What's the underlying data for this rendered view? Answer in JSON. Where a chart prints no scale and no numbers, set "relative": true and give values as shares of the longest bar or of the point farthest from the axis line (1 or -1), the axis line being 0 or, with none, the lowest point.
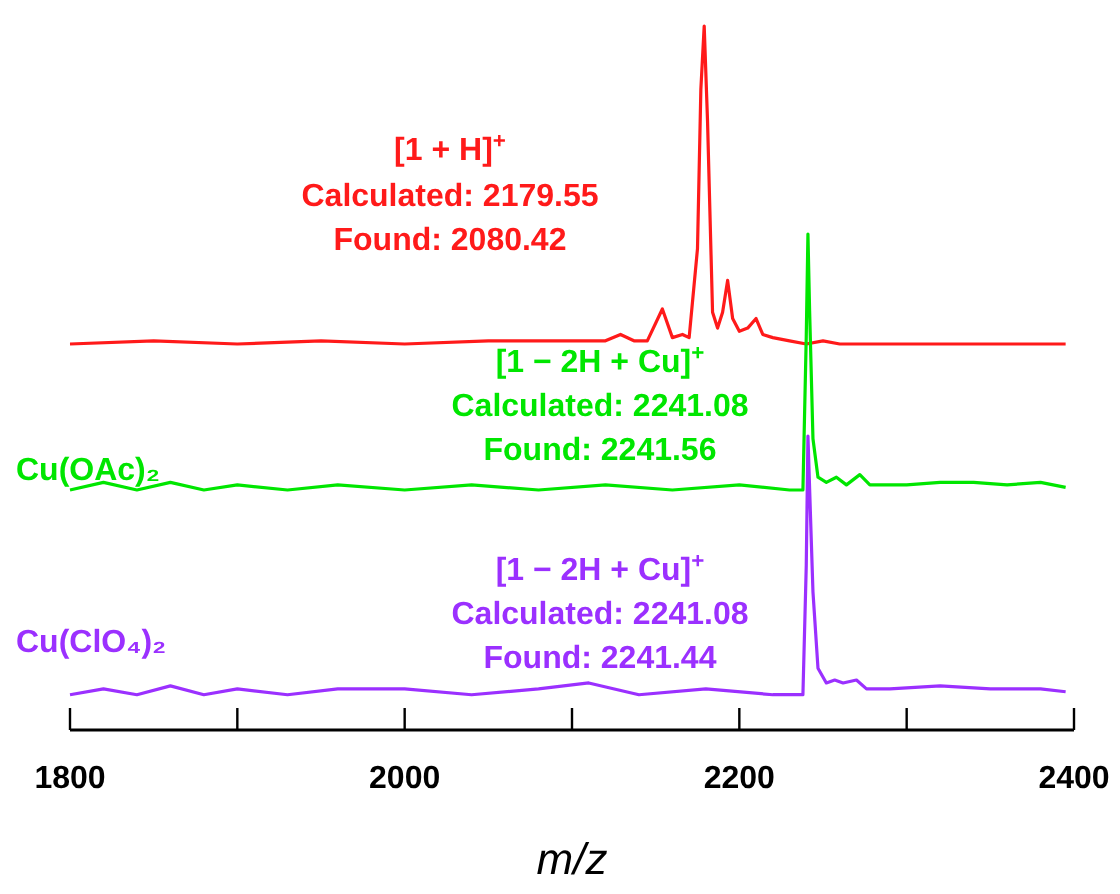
{
  "chart_data": [
    {
      "type": "line",
      "relative": true,
      "xlim": [
        1800,
        2400
      ],
      "tick_labels": false,
      "annotations": [
        "[1 + H]$^{+}$",
        "Calculated: 2179.55",
        "Found: 2080.42"
      ],
      "series": [
        {
          "color": "#ff1a1a",
          "x": [
            1800,
            1850,
            1900,
            1950,
            2000,
            2050,
            2100,
            2120,
            2129,
            2137,
            2145,
            2154,
            2160,
            2166,
            2170,
            2175,
            2177,
            2179,
            2181,
            2184,
            2187,
            2190,
            2193,
            2196,
            2200,
            2205,
            2210,
            2214,
            2220,
            2230,
            2240,
            2250,
            2260,
            2300,
            2350,
            2395
          ],
          "values": [
            0,
            0.01,
            0,
            0.01,
            0,
            0.01,
            0.01,
            0.01,
            0.03,
            0.01,
            0.01,
            0.11,
            0.02,
            0.03,
            0.02,
            0.3,
            0.8,
            1,
            0.7,
            0.1,
            0.05,
            0.1,
            0.2,
            0.08,
            0.04,
            0.05,
            0.08,
            0.03,
            0.02,
            0.01,
            0,
            0.01,
            0,
            0,
            0,
            0
          ]
        }
      ]
    },
    {
      "type": "line",
      "relative": true,
      "xlim": [
        1800,
        2400
      ],
      "tick_labels": false,
      "annotations": [
        "[1 − 2H + Cu]$^{+}$",
        "Calculated: 2241.08",
        "Found: 2241.56"
      ],
      "series": [
        {
          "name": "Cu(OAc)₂",
          "color": "#00e600",
          "x": [
            1800,
            1820,
            1840,
            1860,
            1880,
            1900,
            1930,
            1960,
            2000,
            2040,
            2080,
            2120,
            2160,
            2200,
            2230,
            2238,
            2240,
            2241,
            2242,
            2244,
            2247,
            2252,
            2258,
            2264,
            2272,
            2278,
            2300,
            2320,
            2340,
            2360,
            2380,
            2395
          ],
          "values": [
            0,
            0.03,
            0,
            0.03,
            0,
            0.02,
            0,
            0.02,
            0,
            0.02,
            0,
            0.02,
            0,
            0.02,
            0,
            0,
            0.6,
            1,
            0.7,
            0.2,
            0.05,
            0.03,
            0.05,
            0.02,
            0.06,
            0.02,
            0.02,
            0.03,
            0.03,
            0.02,
            0.03,
            0.01
          ]
        }
      ]
    },
    {
      "type": "line",
      "relative": true,
      "xlim": [
        1800,
        2400
      ],
      "xticks": [
        1800,
        {
          "value": 1900,
          "label": null
        },
        2000,
        {
          "value": 2100,
          "label": null
        },
        2200,
        {
          "value": 2300,
          "label": null
        },
        2400
      ],
      "tick_labels": "x",
      "xlabel": "m/z",
      "annotations": [
        "[1 − 2H + Cu]$^{+}$",
        "Calculated: 2241.08",
        "Found: 2241.44"
      ],
      "series": [
        {
          "name": "Cu(ClO₄)₂",
          "color": "#9b30ff",
          "x": [
            1800,
            1820,
            1840,
            1860,
            1880,
            1900,
            1930,
            1960,
            2000,
            2040,
            2080,
            2110,
            2140,
            2180,
            2220,
            2238,
            2240,
            2241,
            2242,
            2244,
            2247,
            2252,
            2257,
            2262,
            2270,
            2276,
            2290,
            2320,
            2350,
            2380,
            2395
          ],
          "values": [
            0.12,
            0.14,
            0.12,
            0.15,
            0.12,
            0.14,
            0.12,
            0.14,
            0.14,
            0.12,
            0.14,
            0.16,
            0.12,
            0.14,
            0.12,
            0.12,
            0.56,
            1,
            0.82,
            0.47,
            0.21,
            0.16,
            0.17,
            0.16,
            0.17,
            0.14,
            0.14,
            0.15,
            0.14,
            0.14,
            0.13
          ]
        }
      ]
    }
  ]
}
